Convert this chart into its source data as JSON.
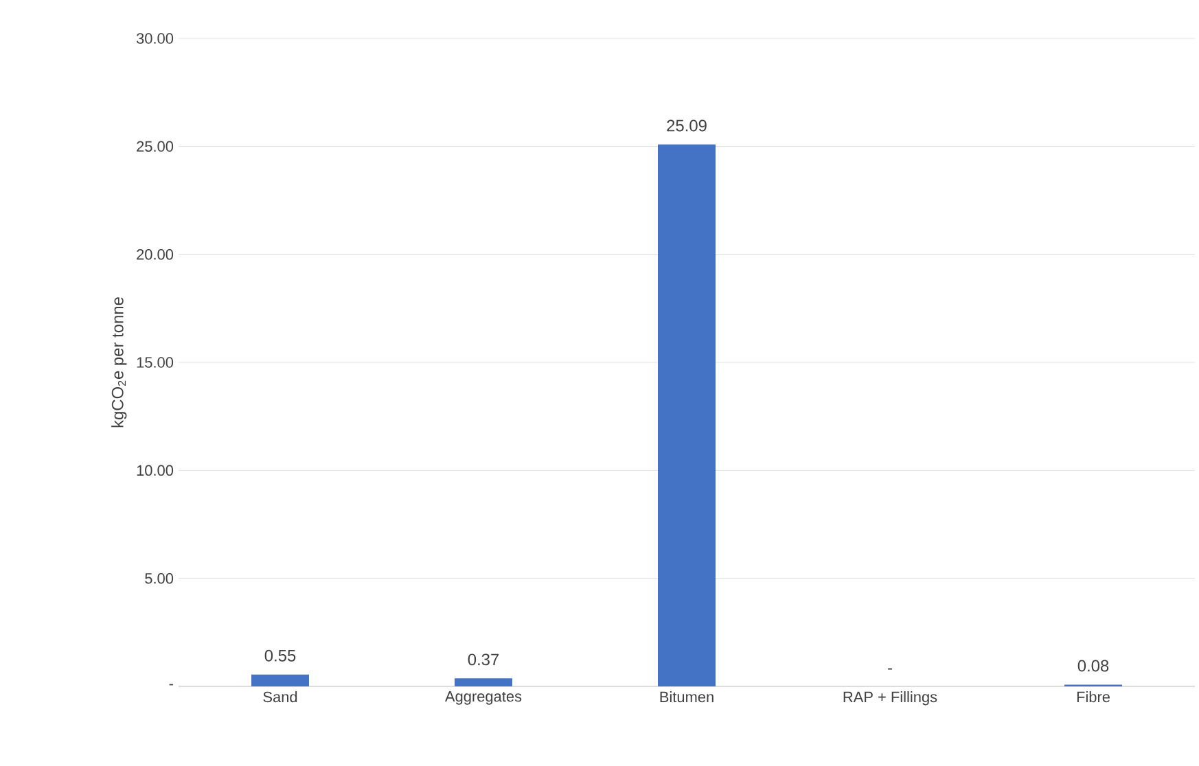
{
  "chart_data": {
    "type": "bar",
    "categories": [
      "Sand",
      "Aggregates",
      "Bitumen",
      "RAP + Fillings",
      "Fibre"
    ],
    "values": [
      0.55,
      0.37,
      25.09,
      0,
      0.08
    ],
    "value_labels": [
      "0.55",
      "0.37",
      "25.09",
      "-",
      "0.08"
    ],
    "color": "#4472c4",
    "ylabel": "kgCO$_{2}$e per tonne",
    "ylim": [
      0,
      30
    ],
    "yticks": [
      {
        "value": 0,
        "label": "-"
      },
      {
        "value": 5,
        "label": "5.00"
      },
      {
        "value": 10,
        "label": "10.00"
      },
      {
        "value": 15,
        "label": "15.00"
      },
      {
        "value": 20,
        "label": "20.00"
      },
      {
        "value": 25,
        "label": "25.00"
      },
      {
        "value": 30,
        "label": "30.00"
      }
    ],
    "grid": "y"
  }
}
